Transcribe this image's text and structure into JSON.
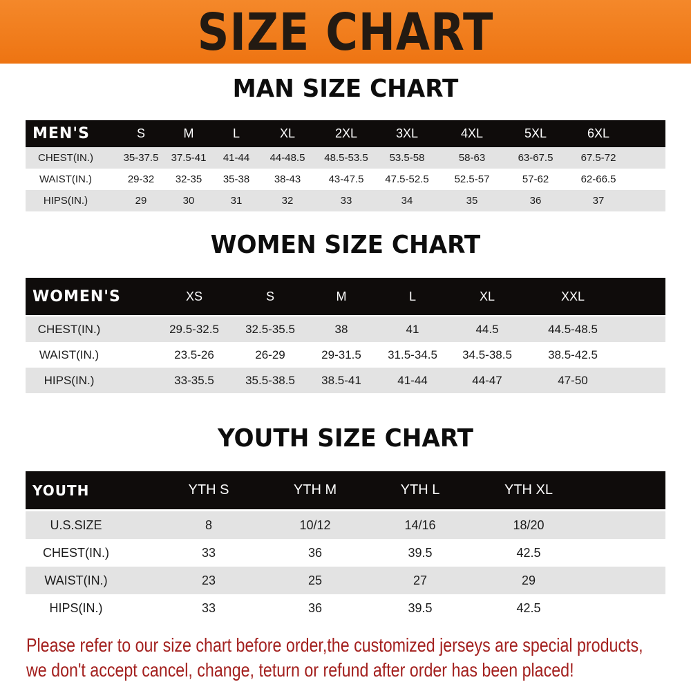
{
  "banner_title": "SIZE CHART",
  "men": {
    "title": "MAN SIZE CHART",
    "header": [
      "MEN'S",
      "S",
      "M",
      "L",
      "XL",
      "2XL",
      "3XL",
      "4XL",
      "5XL",
      "6XL"
    ],
    "rows": [
      [
        "CHEST(IN.)",
        "35-37.5",
        "37.5-41",
        "41-44",
        "44-48.5",
        "48.5-53.5",
        "53.5-58",
        "58-63",
        "63-67.5",
        "67.5-72"
      ],
      [
        "WAIST(IN.)",
        "29-32",
        "32-35",
        "35-38",
        "38-43",
        "43-47.5",
        "47.5-52.5",
        "52.5-57",
        "57-62",
        "62-66.5"
      ],
      [
        "HIPS(IN.)",
        "29",
        "30",
        "31",
        "32",
        "33",
        "34",
        "35",
        "36",
        "37"
      ]
    ]
  },
  "women": {
    "title": "WOMEN SIZE CHART",
    "header": [
      "WOMEN'S",
      "XS",
      "S",
      "M",
      "L",
      "XL",
      "XXL"
    ],
    "rows": [
      [
        "CHEST(IN.)",
        "29.5-32.5",
        "32.5-35.5",
        "38",
        "41",
        "44.5",
        "44.5-48.5"
      ],
      [
        "WAIST(IN.)",
        "23.5-26",
        "26-29",
        "29-31.5",
        "31.5-34.5",
        "34.5-38.5",
        "38.5-42.5"
      ],
      [
        "HIPS(IN.)",
        "33-35.5",
        "35.5-38.5",
        "38.5-41",
        "41-44",
        "44-47",
        "47-50"
      ]
    ]
  },
  "youth": {
    "title": "YOUTH SIZE CHART",
    "header": [
      "YOUTH",
      "YTH S",
      "YTH M",
      "YTH L",
      "YTH XL"
    ],
    "rows": [
      [
        "U.S.SIZE",
        "8",
        "10/12",
        "14/16",
        "18/20"
      ],
      [
        "CHEST(IN.)",
        "33",
        "36",
        "39.5",
        "42.5"
      ],
      [
        "WAIST(IN.)",
        "23",
        "25",
        "27",
        "29"
      ],
      [
        "HIPS(IN.)",
        "33",
        "36",
        "39.5",
        "42.5"
      ]
    ]
  },
  "notice": {
    "line1": "Please refer to our size chart before order,the customized jerseys are special products,",
    "line2": "we don't accept cancel, change, teturn or refund after order has been placed!"
  },
  "colors": {
    "banner": "#f07d1a",
    "header_row": "#0f0c0b",
    "stripe": "#e3e3e3",
    "notice": "#a3201e"
  }
}
